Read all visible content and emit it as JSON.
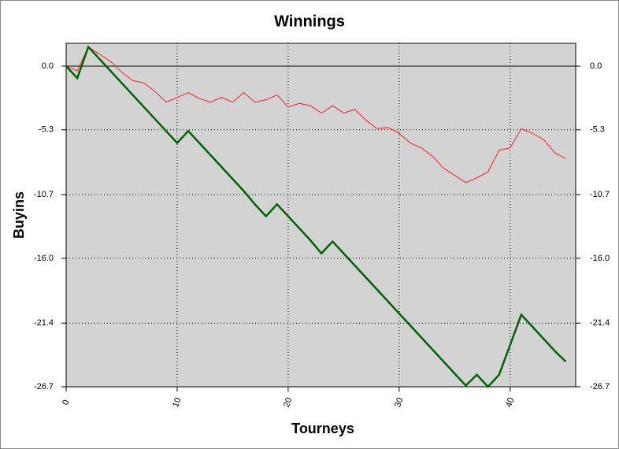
{
  "chart_data": {
    "type": "line",
    "title": "Winnings",
    "x_label": "Tourneys",
    "y_label": "Buyins",
    "x": [
      0,
      1,
      2,
      3,
      4,
      5,
      6,
      7,
      8,
      9,
      10,
      11,
      12,
      13,
      14,
      15,
      16,
      17,
      18,
      19,
      20,
      21,
      22,
      23,
      24,
      25,
      26,
      27,
      28,
      29,
      30,
      31,
      32,
      33,
      34,
      35,
      36,
      37,
      38,
      39,
      40,
      41,
      42,
      43,
      44,
      45
    ],
    "series": [
      {
        "color": "#ff2020",
        "width": 1,
        "values": [
          0,
          -0.4,
          1.6,
          1.0,
          0.4,
          -0.5,
          -1.2,
          -1.4,
          -2.1,
          -3.0,
          -2.6,
          -2.2,
          -2.7,
          -3.0,
          -2.6,
          -3.0,
          -2.2,
          -3.0,
          -2.8,
          -2.4,
          -3.4,
          -3.1,
          -3.3,
          -3.9,
          -3.3,
          -3.9,
          -3.6,
          -4.5,
          -5.2,
          -5.1,
          -5.6,
          -6.4,
          -6.8,
          -7.5,
          -8.5,
          -9.1,
          -9.7,
          -9.3,
          -8.8,
          -7.0,
          -6.8,
          -5.2,
          -5.6,
          -6.1,
          -7.2,
          -7.7
        ]
      },
      {
        "color": "#006400",
        "width": 2.5,
        "values": [
          0,
          -1,
          1.6,
          0.6,
          -0.4,
          -1.4,
          -2.4,
          -3.4,
          -4.4,
          -5.4,
          -6.4,
          -5.4,
          -6.4,
          -7.4,
          -8.4,
          -9.4,
          -10.4,
          -11.5,
          -12.5,
          -11.5,
          -12.5,
          -13.5,
          -14.5,
          -15.6,
          -14.6,
          -15.6,
          -16.6,
          -17.6,
          -18.6,
          -19.6,
          -20.6,
          -21.6,
          -22.6,
          -23.6,
          -24.6,
          -25.6,
          -26.6,
          -25.7,
          -26.7,
          -25.7,
          -23.2,
          -20.7,
          -21.7,
          -22.7,
          -23.7,
          -24.6
        ]
      }
    ],
    "xlim": [
      0,
      45.9
    ],
    "xticks": [
      0,
      10,
      20,
      30,
      40
    ],
    "ylim": [
      -26.7,
      1.9
    ],
    "yticks": [
      {
        "value": 0,
        "label": "0.0"
      },
      -5.3,
      -10.7,
      {
        "value": -16,
        "label": "-16.0"
      },
      -21.4,
      -26.7
    ],
    "grid": true,
    "background": "#d3d3d3"
  }
}
